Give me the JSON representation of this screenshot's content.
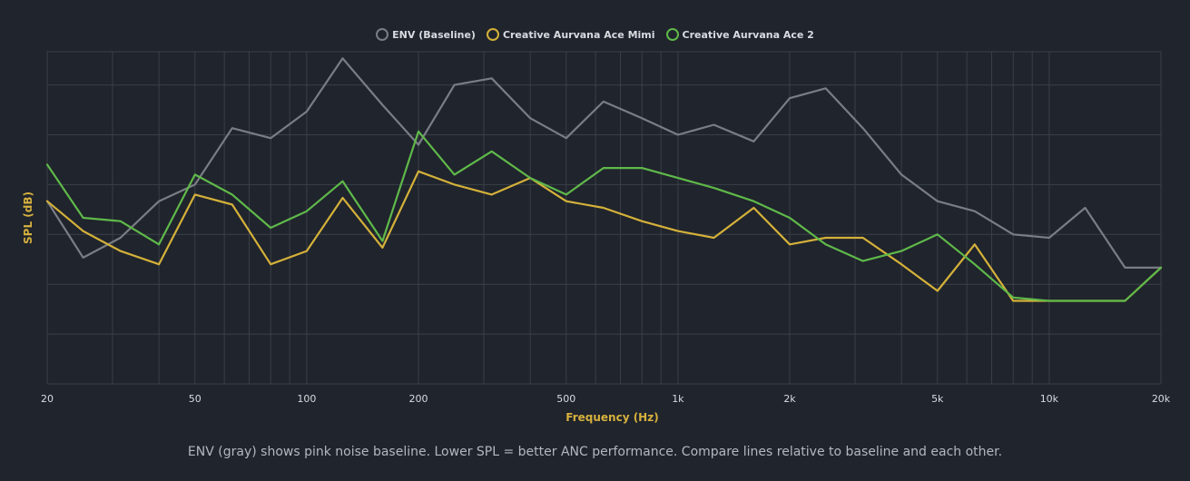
{
  "colors": {
    "background": "#20242c",
    "grid": "#3a3f48",
    "axis_label": "#d6b13e",
    "tick": "#d8dbe0",
    "env": "#7a7d84",
    "mimi": "#d4b13a",
    "ace2": "#5fb94a"
  },
  "footer_note": "ENV (gray) shows pink noise baseline. Lower SPL = better ANC performance. Compare lines relative to baseline and each other.",
  "chart_data": {
    "type": "line",
    "title": "",
    "xlabel": "Frequency (Hz)",
    "ylabel": "SPL (dB)",
    "x_scale": "log",
    "xlim": [
      20,
      20000
    ],
    "ylim": [
      0,
      100
    ],
    "y_gridlines": [
      0,
      15,
      30,
      45,
      60,
      75,
      90,
      100
    ],
    "x_ticks": [
      {
        "value": 20,
        "label": "20"
      },
      {
        "value": 50,
        "label": "50"
      },
      {
        "value": 100,
        "label": "100"
      },
      {
        "value": 200,
        "label": "200"
      },
      {
        "value": 500,
        "label": "500"
      },
      {
        "value": 1000,
        "label": "1k"
      },
      {
        "value": 2000,
        "label": "2k"
      },
      {
        "value": 5000,
        "label": "5k"
      },
      {
        "value": 10000,
        "label": "10k"
      },
      {
        "value": 20000,
        "label": "20k"
      }
    ],
    "legend_position": "top-center",
    "x": [
      20,
      25,
      31.5,
      40,
      50,
      63,
      80,
      100,
      125,
      160,
      200,
      250,
      315,
      400,
      500,
      630,
      800,
      1000,
      1250,
      1600,
      2000,
      2500,
      3150,
      4000,
      5000,
      6300,
      8000,
      10000,
      12500,
      16000,
      20000
    ],
    "series": [
      {
        "name": "ENV (Baseline)",
        "color": "#7a7d84",
        "values": [
          55,
          38,
          44,
          55,
          60,
          77,
          74,
          82,
          98,
          84,
          72,
          90,
          92,
          80,
          74,
          85,
          80,
          75,
          78,
          73,
          86,
          89,
          77,
          63,
          55,
          52,
          45,
          44,
          53,
          35,
          35
        ]
      },
      {
        "name": "Creative Aurvana Ace Mimi",
        "color": "#d4b13a",
        "values": [
          55,
          46,
          40,
          36,
          57,
          54,
          36,
          40,
          56,
          41,
          64,
          60,
          57,
          62,
          55,
          53,
          49,
          46,
          44,
          53,
          42,
          44,
          44,
          36,
          28,
          42,
          25,
          25,
          25,
          25,
          35
        ]
      },
      {
        "name": "Creative Aurvana Ace 2",
        "color": "#5fb94a",
        "values": [
          66,
          50,
          49,
          42,
          63,
          57,
          47,
          52,
          61,
          43,
          76,
          63,
          70,
          62,
          57,
          65,
          65,
          62,
          59,
          55,
          50,
          42,
          37,
          40,
          45,
          36,
          26,
          25,
          25,
          25,
          35
        ]
      }
    ]
  }
}
